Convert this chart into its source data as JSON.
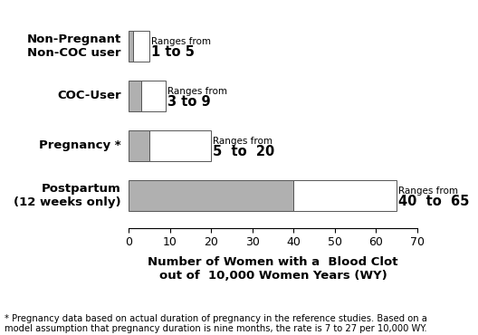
{
  "categories": [
    "Non-Pregnant\nNon-COC user",
    "COC-User",
    "Pregnancy *",
    "Postpartum\n(12 weeks only)"
  ],
  "bar_low": [
    1,
    3,
    5,
    40
  ],
  "bar_high": [
    5,
    9,
    20,
    65
  ],
  "range_top_text": [
    "Ranges from",
    "Ranges from",
    "Ranges from",
    "Ranges from"
  ],
  "range_bot_text": [
    "1 to 5",
    "3 to 9",
    "5  to  20",
    "40  to  65"
  ],
  "xlabel_line1": "Number of Women with a  Blood Clot",
  "xlabel_line2": "out of  10,000 Women Years (WY)",
  "xlim": [
    0,
    70
  ],
  "xticks": [
    0,
    10,
    20,
    30,
    40,
    50,
    60,
    70
  ],
  "footnote_line1": "* Pregnancy data based on actual duration of pregnancy in the reference studies. Based on a",
  "footnote_line2": "model assumption that pregnancy duration is nine months, the rate is 7 to 27 per 10,000 WY.",
  "bar_height": 0.62,
  "gray_color": "#b0b0b0",
  "white_color": "#ffffff",
  "bar_edge_color": "#555555",
  "background_color": "#ffffff",
  "y_label_fontsize": 9.5,
  "x_label_fontsize": 9.5,
  "ranges_from_fontsize": 7.5,
  "ranges_num_fontsize": 10.5
}
